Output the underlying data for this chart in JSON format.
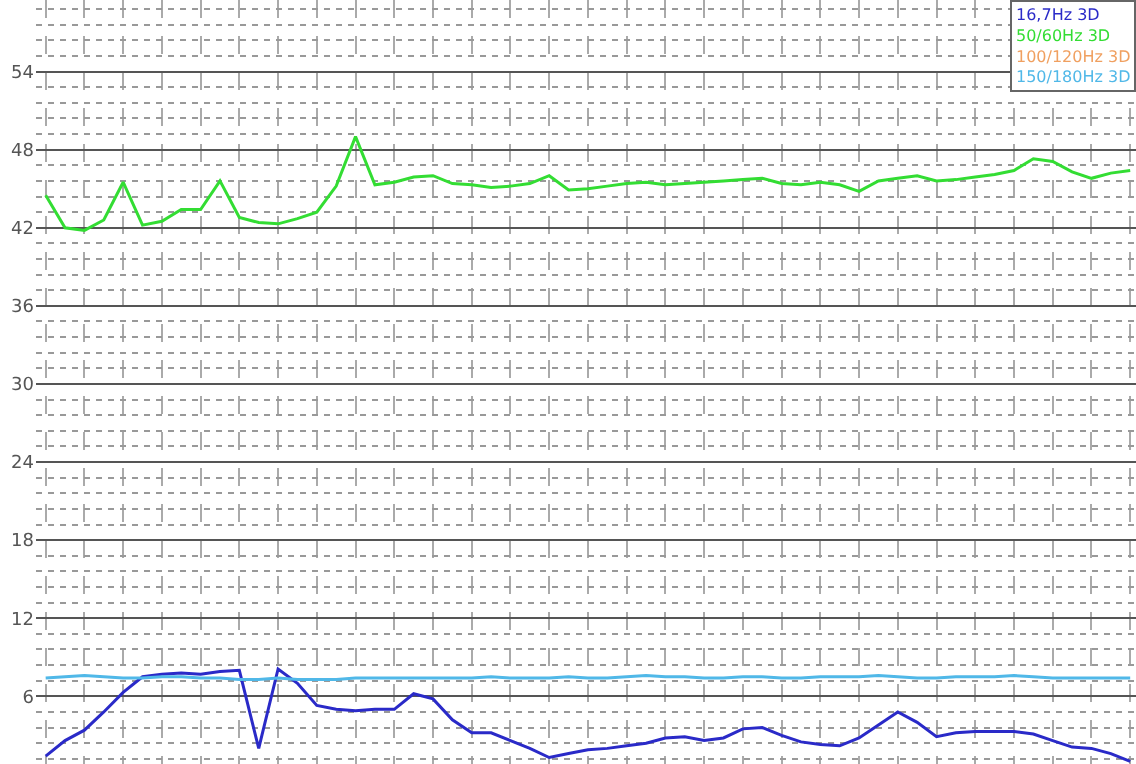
{
  "chart_data": {
    "type": "line",
    "categories": [
      null,
      null,
      null,
      null,
      null,
      null,
      null,
      null,
      null,
      null,
      null,
      null,
      null,
      null,
      null,
      null,
      null,
      null,
      null,
      null,
      null,
      null,
      null,
      null,
      null,
      null,
      null,
      null,
      null,
      null,
      null,
      null,
      null,
      null,
      null,
      null,
      null,
      null,
      null,
      null,
      null,
      null,
      null,
      null,
      null,
      null,
      null,
      null,
      null,
      null,
      null,
      null,
      null,
      null,
      null,
      null,
      null
    ],
    "series": [
      {
        "name": "16,7Hz 3D",
        "color": "#2a2ac8",
        "values": [
          1.4,
          2.6,
          3.4,
          4.8,
          6.3,
          7.5,
          7.7,
          7.8,
          7.7,
          7.9,
          8.0,
          2.0,
          8.1,
          7.0,
          5.3,
          5.0,
          4.9,
          5.0,
          5.0,
          6.2,
          5.8,
          4.2,
          3.2,
          3.2,
          2.6,
          2.0,
          1.3,
          1.6,
          1.9,
          2.0,
          2.2,
          2.4,
          2.8,
          2.9,
          2.6,
          2.8,
          3.5,
          3.6,
          3.0,
          2.5,
          2.3,
          2.2,
          2.8,
          3.8,
          4.8,
          4.0,
          2.9,
          3.2,
          3.3,
          3.3,
          3.3,
          3.1,
          2.6,
          2.1,
          2.0,
          1.6,
          1.0
        ]
      },
      {
        "name": "50/60Hz 3D",
        "color": "#33dd33",
        "values": [
          44.5,
          42.0,
          41.8,
          42.6,
          45.5,
          42.2,
          42.5,
          43.4,
          43.4,
          45.6,
          42.8,
          42.4,
          42.3,
          42.7,
          43.2,
          45.2,
          49.0,
          45.3,
          45.5,
          45.9,
          46.0,
          45.4,
          45.3,
          45.1,
          45.2,
          45.4,
          46.0,
          44.9,
          45.0,
          45.2,
          45.4,
          45.5,
          45.3,
          45.4,
          45.5,
          45.6,
          45.7,
          45.8,
          45.4,
          45.3,
          45.5,
          45.3,
          44.8,
          45.6,
          45.8,
          46.0,
          45.6,
          45.7,
          45.9,
          46.1,
          46.4,
          47.3,
          47.1,
          46.3,
          45.8,
          46.2,
          46.4
        ]
      },
      {
        "name": "100/120Hz 3D",
        "color": "#f0a060",
        "values": [
          null,
          null,
          null,
          null,
          null,
          null,
          null,
          null,
          null,
          null,
          null,
          null,
          null,
          null,
          null,
          null,
          null,
          null,
          null,
          null,
          null,
          null,
          null,
          null,
          null,
          null,
          null,
          null,
          null,
          null,
          null,
          null,
          null,
          null,
          null,
          null,
          null,
          null,
          null,
          null,
          null,
          null,
          null,
          null,
          null,
          null,
          null,
          null,
          null,
          null,
          null,
          null,
          null,
          null,
          null,
          null,
          null
        ]
      },
      {
        "name": "150/180Hz 3D",
        "color": "#50b8e8",
        "values": [
          7.4,
          7.5,
          7.6,
          7.5,
          7.4,
          7.4,
          7.5,
          7.5,
          7.4,
          7.4,
          7.3,
          7.3,
          7.4,
          7.3,
          7.3,
          7.3,
          7.4,
          7.4,
          7.4,
          7.4,
          7.4,
          7.4,
          7.4,
          7.5,
          7.4,
          7.4,
          7.4,
          7.5,
          7.4,
          7.4,
          7.5,
          7.6,
          7.5,
          7.5,
          7.4,
          7.4,
          7.5,
          7.5,
          7.4,
          7.4,
          7.5,
          7.5,
          7.5,
          7.6,
          7.5,
          7.4,
          7.4,
          7.5,
          7.5,
          7.5,
          7.6,
          7.5,
          7.4,
          7.4,
          7.4,
          7.4,
          7.4
        ]
      }
    ],
    "ylim": [
      0.8,
      59.5
    ],
    "yticks": [
      6,
      12,
      18,
      24,
      30,
      36,
      42,
      48,
      54
    ],
    "grid": true,
    "legend": "top right",
    "marker": "none",
    "line_style": "solid"
  }
}
